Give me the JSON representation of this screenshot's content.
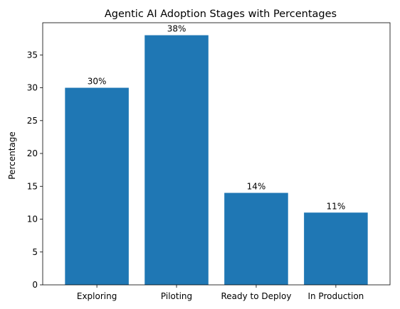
{
  "chart_data": {
    "type": "bar",
    "title": "Agentic AI Adoption Stages with Percentages",
    "xlabel": "",
    "ylabel": "Percentage",
    "categories": [
      "Exploring",
      "Piloting",
      "Ready to Deploy",
      "In Production"
    ],
    "values": [
      30,
      38,
      14,
      11
    ],
    "data_labels": [
      "30%",
      "38%",
      "14%",
      "11%"
    ],
    "ylim": [
      0,
      39.9
    ],
    "yticks": [
      0,
      5,
      10,
      15,
      20,
      25,
      30,
      35
    ],
    "bar_color": "#1f77b4",
    "grid": false,
    "legend": "none"
  }
}
